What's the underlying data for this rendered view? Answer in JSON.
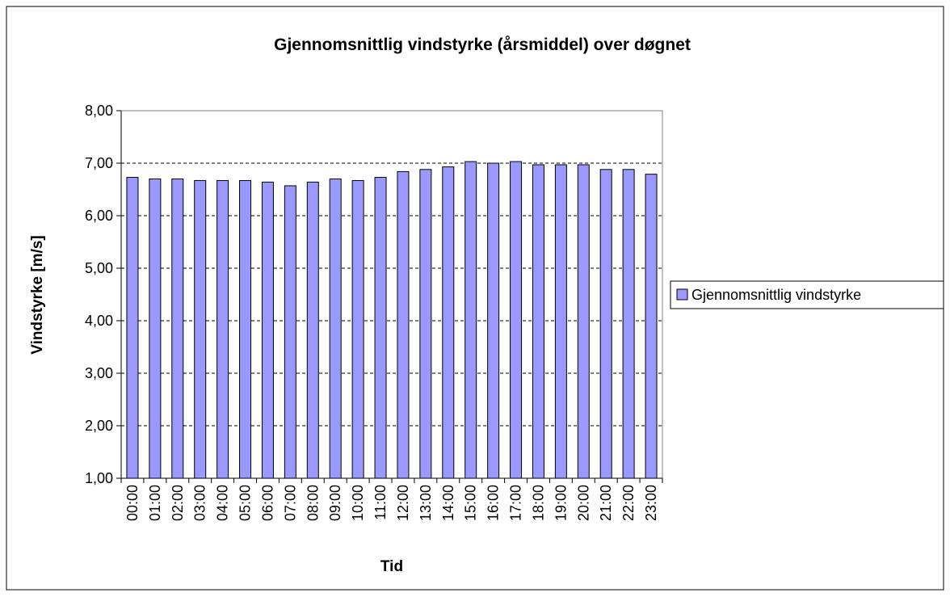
{
  "chart_data": {
    "type": "bar",
    "title": "Gjennomsnittlig vindstyrke (årsmiddel) over døgnet",
    "x_label": "Tid",
    "y_label": "Vindstyrke [m/s]",
    "categories": [
      "00:00",
      "01:00",
      "02:00",
      "03:00",
      "04:00",
      "05:00",
      "06:00",
      "07:00",
      "08:00",
      "09:00",
      "10:00",
      "11:00",
      "12:00",
      "13:00",
      "14:00",
      "15:00",
      "16:00",
      "17:00",
      "18:00",
      "19:00",
      "20:00",
      "21:00",
      "22:00",
      "23:00"
    ],
    "series": [
      {
        "name": "Gjennomsnittlig vindstyrke",
        "color": "#9999ff",
        "values": [
          6.73,
          6.7,
          6.7,
          6.67,
          6.67,
          6.67,
          6.64,
          6.57,
          6.64,
          6.7,
          6.67,
          6.73,
          6.84,
          6.88,
          6.93,
          7.03,
          7.0,
          7.03,
          6.97,
          6.97,
          6.97,
          6.88,
          6.88,
          6.79
        ]
      }
    ],
    "ylim": [
      1,
      8
    ],
    "yticks": [
      {
        "value": 1,
        "label": "1,00"
      },
      {
        "value": 2,
        "label": "2,00"
      },
      {
        "value": 3,
        "label": "3,00"
      },
      {
        "value": 4,
        "label": "4,00"
      },
      {
        "value": 5,
        "label": "5,00"
      },
      {
        "value": 6,
        "label": "6,00"
      },
      {
        "value": 7,
        "label": "7,00"
      },
      {
        "value": 8,
        "label": "8,00"
      }
    ],
    "grid": true,
    "legend": "right"
  }
}
